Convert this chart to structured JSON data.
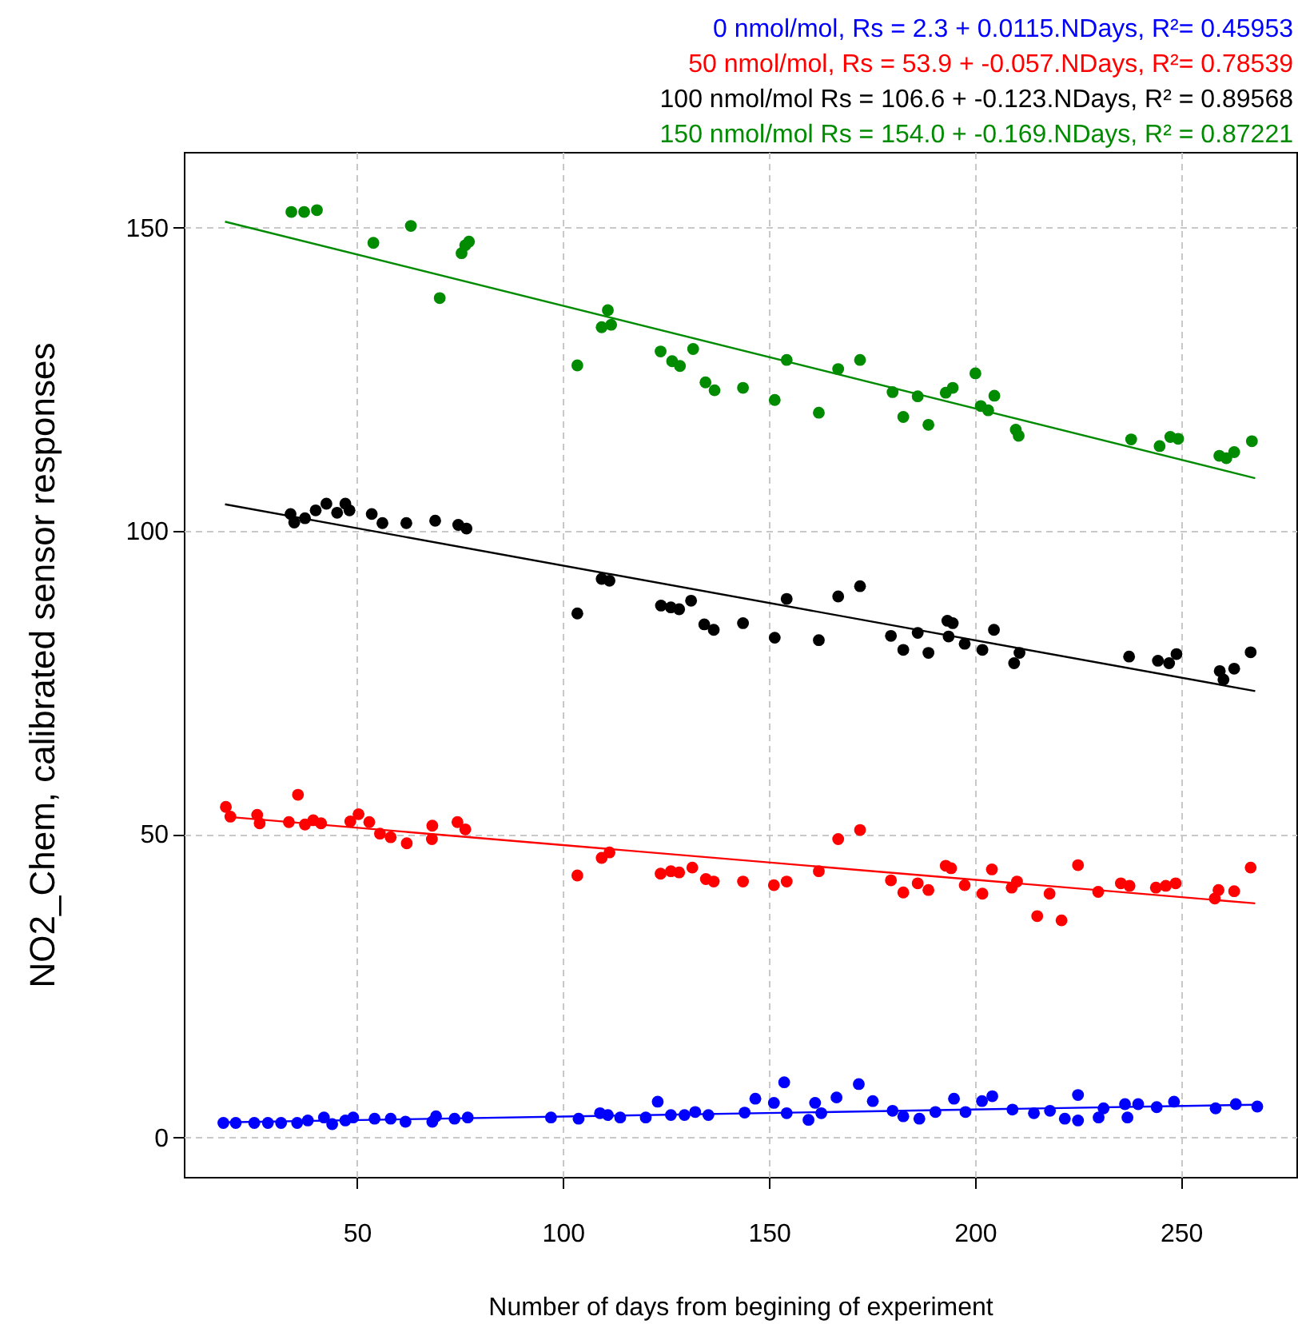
{
  "chart_data": {
    "type": "scatter",
    "xlabel": "Number of days from begining of experiment",
    "ylabel": "NO2_Chem, calibrated sensor responses",
    "xlim": [
      8,
      278
    ],
    "xticks": [
      50,
      100,
      150,
      200,
      250
    ],
    "ylim": [
      -6.5,
      162.5
    ],
    "yticks": [
      0,
      50,
      100,
      150
    ],
    "grid": true,
    "series": [
      {
        "marker": "circle",
        "color": "#0000ff",
        "x": [
          17.6,
          20.6,
          25.1,
          28.4,
          31.6,
          35.5,
          38.1,
          42,
          44,
          47.2,
          49.1,
          54.3,
          58.2,
          61.8,
          68.3,
          69.2,
          73.7,
          76.9,
          97.1,
          103.8,
          109,
          110.9,
          113.9,
          120.1,
          123,
          126.2,
          129.5,
          132.1,
          135.3,
          144.1,
          146.7,
          151.2,
          153.7,
          154.3,
          159.6,
          161.2,
          162.7,
          166.4,
          171.8,
          175.2,
          180,
          182.6,
          186.5,
          190.4,
          194.9,
          197.7,
          201.7,
          204.2,
          209.1,
          214.3,
          218.2,
          221.8,
          225,
          225,
          230,
          231.2,
          236.4,
          237,
          239.6,
          244.1,
          248.3,
          258.4,
          263.3,
          268.5
        ],
        "values": [
          2.4,
          2.4,
          2.4,
          2.4,
          2.4,
          2.4,
          2.8,
          3.3,
          2.2,
          2.8,
          3.3,
          3.1,
          3.1,
          2.6,
          2.6,
          3.5,
          3.1,
          3.3,
          3.3,
          3.1,
          4,
          3.7,
          3.3,
          3.3,
          5.9,
          3.7,
          3.7,
          4.2,
          3.7,
          4.1,
          6.4,
          5.7,
          9.1,
          4,
          2.9,
          5.7,
          4,
          6.6,
          8.8,
          6,
          4.4,
          3.5,
          3.1,
          4.2,
          6.4,
          4.2,
          6,
          6.8,
          4.6,
          4,
          4.4,
          3.1,
          7,
          2.8,
          3.3,
          4.8,
          5.5,
          3.3,
          5.5,
          5,
          5.9,
          4.8,
          5.5,
          5.1
        ]
      },
      {
        "marker": "circle",
        "color": "#ff0000",
        "x": [
          18.2,
          19.3,
          25.8,
          26.4,
          33.5,
          35.7,
          37.4,
          39.4,
          41.3,
          48.4,
          50.4,
          53,
          55.6,
          58.2,
          62.1,
          68.3,
          68.2,
          74.4,
          76.3,
          103.5,
          109.4,
          111.3,
          123.7,
          126.2,
          128.2,
          131.4,
          134.7,
          136.6,
          143.7,
          151.2,
          154.3,
          162.1,
          166.8,
          172.1,
          179.6,
          182.6,
          186.1,
          188.7,
          192.9,
          194.2,
          197.5,
          201.8,
          204.1,
          208.9,
          210.2,
          215.1,
          218.1,
          221,
          225,
          229.9,
          235.4,
          237.5,
          243.9,
          246.3,
          248.7,
          258.2,
          259.1,
          262.9,
          266.9
        ],
        "values": [
          54.5,
          52.9,
          53.2,
          51.8,
          52,
          56.5,
          51.6,
          52.3,
          51.8,
          52.1,
          53.3,
          52,
          50.1,
          49.5,
          48.5,
          51.4,
          49.2,
          52,
          50.8,
          43.2,
          46.1,
          47,
          43.5,
          43.9,
          43.7,
          44.5,
          42.6,
          42.2,
          42.2,
          41.6,
          42.2,
          43.9,
          49.2,
          50.7,
          42.4,
          40.4,
          41.9,
          40.8,
          44.8,
          44.4,
          41.6,
          40.2,
          44.2,
          41.2,
          42.2,
          36.5,
          40.2,
          35.8,
          44.9,
          40.5,
          41.9,
          41.5,
          41.2,
          41.5,
          41.9,
          39.4,
          40.8,
          40.6,
          44.5
        ]
      },
      {
        "marker": "circle",
        "color": "#000000",
        "x": [
          33.9,
          34.8,
          37.4,
          40,
          42.6,
          45.2,
          47.2,
          48.2,
          53.6,
          56.2,
          62,
          69,
          74.6,
          76.6,
          103.5,
          109.4,
          111.3,
          123.8,
          126.2,
          128.2,
          131.1,
          134.3,
          136.6,
          143.7,
          151.4,
          154.3,
          162.1,
          166.8,
          172.1,
          179.6,
          182.6,
          186.1,
          188.7,
          193.3,
          194.6,
          193.6,
          197.5,
          201.8,
          204.6,
          209.5,
          210.8,
          237.4,
          244.4,
          247.1,
          248.9,
          259.4,
          260.3,
          262.9,
          266.9
        ],
        "values": [
          102.8,
          101.4,
          102.1,
          103.4,
          104.5,
          103,
          104.5,
          103.4,
          102.8,
          101.3,
          101.3,
          101.7,
          101,
          100.4,
          86.4,
          92.1,
          91.8,
          87.7,
          87.4,
          87.1,
          88.5,
          84.6,
          83.7,
          84.8,
          82.4,
          88.8,
          82,
          89.2,
          90.9,
          82.7,
          80.4,
          83.2,
          79.9,
          85.2,
          84.8,
          82.6,
          81.4,
          80.4,
          83.7,
          78.2,
          79.9,
          79.3,
          78.6,
          78.2,
          79.7,
          76.9,
          75.5,
          77.3,
          80
        ]
      },
      {
        "marker": "circle",
        "color": "#008b00",
        "x": [
          34.1,
          37.2,
          40.3,
          54,
          63.1,
          70.1,
          75.4,
          76.3,
          77.2,
          103.5,
          110.9,
          109.4,
          111.7,
          123.7,
          126.5,
          128.4,
          131.6,
          134.6,
          136.8,
          143.7,
          151.4,
          154.3,
          162.1,
          166.8,
          172.1,
          180,
          182.6,
          186.1,
          188.7,
          192.9,
          194.6,
          200.1,
          201.4,
          203.2,
          204.7,
          209.9,
          210.6,
          237.9,
          244.8,
          247.4,
          249.3,
          259.3,
          261,
          262.9,
          267.2
        ],
        "values": [
          152.6,
          152.6,
          152.9,
          147.5,
          150.3,
          138.4,
          145.8,
          147.1,
          147.7,
          127.3,
          136.4,
          133.6,
          134,
          129.6,
          128,
          127.2,
          130,
          124.5,
          123.2,
          123.6,
          121.6,
          128.2,
          119.5,
          126.7,
          128.2,
          122.9,
          118.8,
          122.2,
          117.5,
          122.8,
          123.6,
          126,
          120.6,
          119.9,
          122.3,
          116.7,
          115.7,
          115.1,
          114,
          115.5,
          115.2,
          112.4,
          112,
          113,
          114.8
        ]
      },
      {
        "type": "line",
        "name": "0 nmol/mol, Rs = 2.3 + 0.0115.NDays, R²= 0.45953",
        "color": "#0000ff",
        "x": [
          18,
          268
        ],
        "values": [
          2.5,
          5.4
        ]
      },
      {
        "type": "line",
        "name": "50 nmol/mol, Rs = 53.9 + -0.057.NDays, R²= 0.78539",
        "color": "#ff0000",
        "x": [
          18,
          268
        ],
        "values": [
          52.9,
          38.6
        ]
      },
      {
        "type": "line",
        "name": "100 nmol/mol Rs = 106.6 + -0.123.NDays, R² = 0.89568",
        "color": "#000000",
        "x": [
          18,
          268
        ],
        "values": [
          104.4,
          73.6
        ]
      },
      {
        "type": "line",
        "name": "150 nmol/mol Rs = 154.0 + -0.169.NDays, R² = 0.87221",
        "color": "#008b00",
        "x": [
          18,
          268
        ],
        "values": [
          151,
          108.7
        ]
      }
    ]
  }
}
